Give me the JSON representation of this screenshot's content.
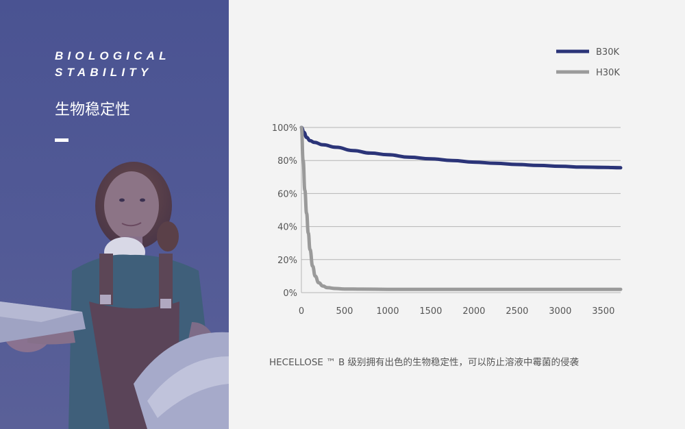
{
  "panel": {
    "title_en_line1": "BIOLOGICAL",
    "title_en_line2": "STABILITY",
    "title_cn": "生物稳定性",
    "bg_color": "#4a5392"
  },
  "caption": "HECELLOSE ™ B 级别拥有出色的生物稳定性，可以防止溶液中霉菌的侵袭",
  "chart_data": {
    "type": "line",
    "xlim": [
      0,
      3700
    ],
    "ylim": [
      0,
      100
    ],
    "x_ticks": [
      0,
      500,
      1000,
      1500,
      2000,
      2500,
      3000,
      3500
    ],
    "y_ticks": [
      0,
      20,
      40,
      60,
      80,
      100
    ],
    "x_tick_labels": [
      "0",
      "500",
      "1000",
      "1500",
      "2000",
      "2500",
      "3000",
      "3500"
    ],
    "y_tick_labels": [
      "0%",
      "20%",
      "40%",
      "60%",
      "80%",
      "100%"
    ],
    "grid": "horizontal",
    "legend_position": "top-right",
    "series": [
      {
        "name": "B30K",
        "color": "#2b3478",
        "x": [
          0,
          30,
          60,
          100,
          150,
          250,
          400,
          600,
          800,
          1000,
          1250,
          1500,
          1750,
          2000,
          2250,
          2500,
          2750,
          3000,
          3250,
          3500,
          3700
        ],
        "y": [
          100,
          97,
          94,
          92,
          91,
          89.5,
          88,
          86,
          84.5,
          83.5,
          82,
          81,
          80,
          79,
          78.3,
          77.6,
          77,
          76.5,
          76,
          75.8,
          75.6
        ]
      },
      {
        "name": "H30K",
        "color": "#9a9a9a",
        "x": [
          0,
          20,
          40,
          60,
          80,
          100,
          130,
          160,
          200,
          250,
          300,
          400,
          500,
          700,
          1000,
          1500,
          2000,
          2500,
          3000,
          3500,
          3700
        ],
        "y": [
          100,
          80,
          62,
          48,
          36,
          26,
          16,
          10,
          6,
          4,
          3,
          2.5,
          2.2,
          2.1,
          2,
          2,
          2,
          2,
          2,
          2,
          2
        ]
      }
    ]
  }
}
